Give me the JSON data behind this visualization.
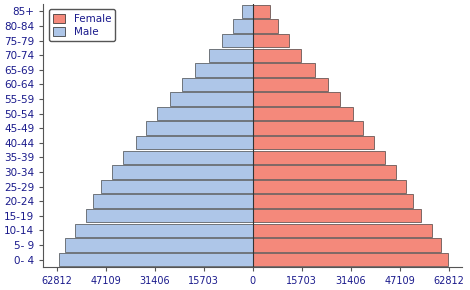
{
  "age_groups": [
    "0- 4",
    "5- 9",
    "10-14",
    "15-19",
    "20-24",
    "25-29",
    "30-34",
    "35-39",
    "40-44",
    "45-49",
    "50-54",
    "55-59",
    "60-64",
    "65-69",
    "70-74",
    "75-79",
    "80-84",
    "85+"
  ],
  "male": [
    62000,
    60000,
    57000,
    53500,
    51000,
    48500,
    45000,
    41500,
    37500,
    34000,
    30500,
    26500,
    22500,
    18500,
    14000,
    9800,
    6200,
    3500
  ],
  "female": [
    62500,
    60500,
    57500,
    54000,
    51500,
    49000,
    46000,
    42500,
    39000,
    35500,
    32000,
    28000,
    24000,
    20000,
    15500,
    11500,
    8000,
    5500
  ],
  "male_color": "#aec6e8",
  "female_color": "#f4897b",
  "bar_edge_color": "#222222",
  "background_color": "#ffffff",
  "xticks": [
    -62812,
    -47109,
    -31406,
    -15703,
    0,
    15703,
    31406,
    47109,
    62812
  ],
  "xtick_labels": [
    "62812",
    "47109",
    "31406",
    "15703",
    "0",
    "15703",
    "31406",
    "47109",
    "62812"
  ],
  "xlim": [
    -67000,
    67000
  ],
  "legend_female": "Female",
  "legend_male": "Male",
  "bar_height": 0.92,
  "tick_fontsize": 7,
  "label_fontsize": 7.5,
  "font_color": "#1a1a8c"
}
